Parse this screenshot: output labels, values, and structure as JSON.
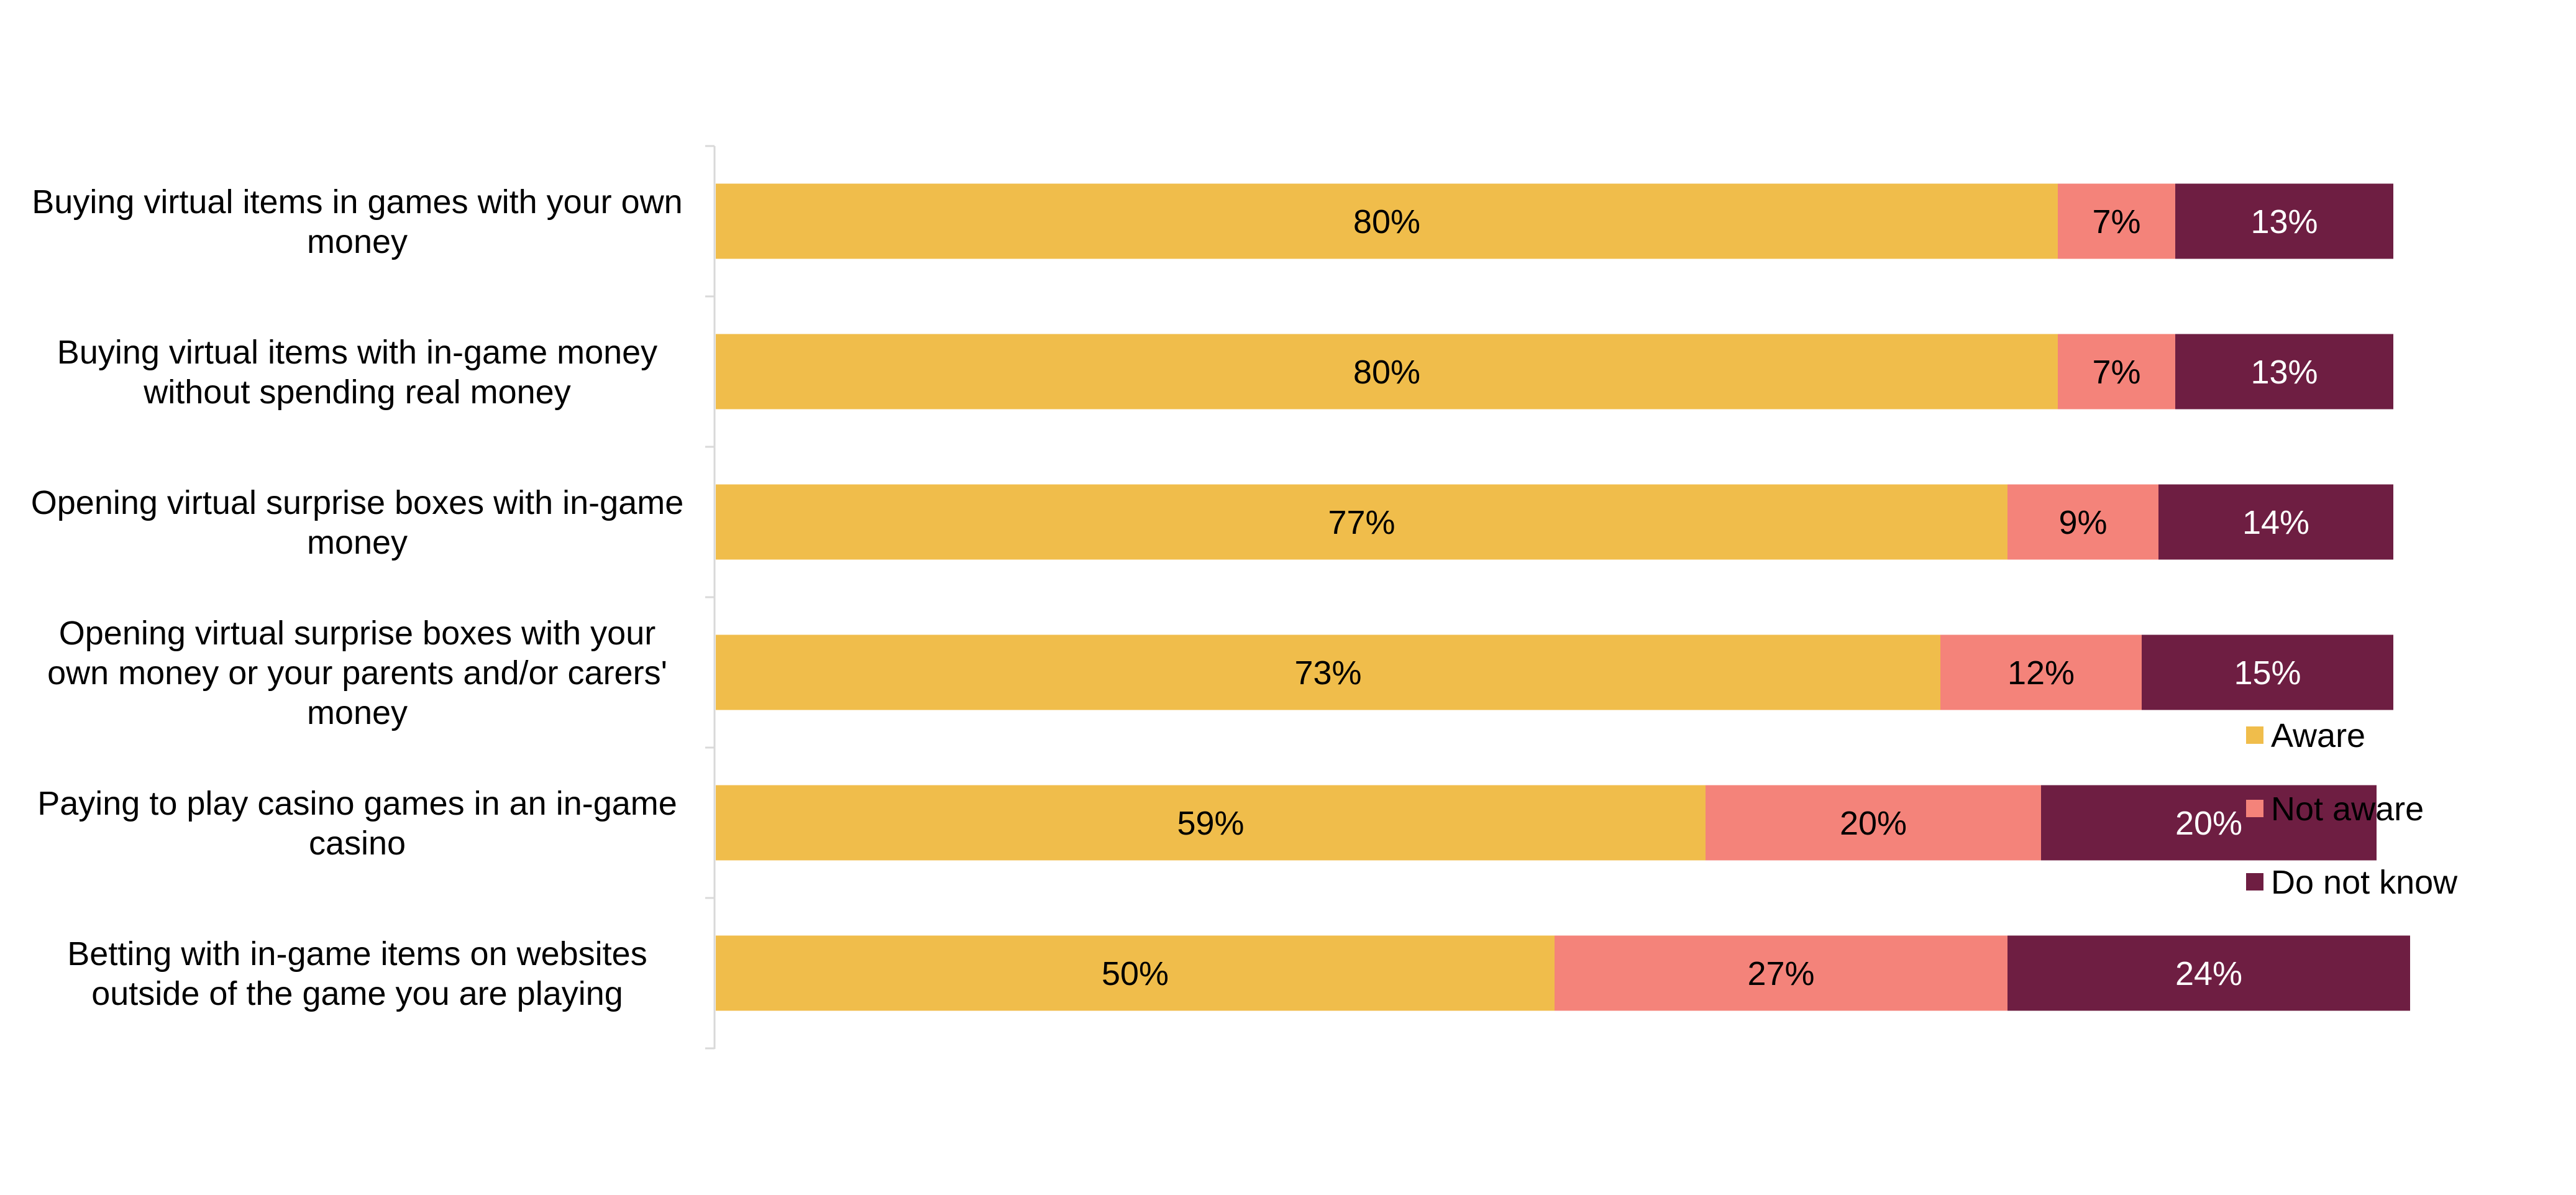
{
  "chart_data": {
    "type": "bar",
    "orientation": "horizontal",
    "stacked": true,
    "categories": [
      "Buying virtual items in games with your own money",
      "Buying virtual items with in-game money without spending real money",
      "Opening virtual surprise boxes with in-game money",
      "Opening virtual surprise boxes with your own money or your parents and/or carers' money",
      "Paying to play casino games in an in-game casino",
      "Betting with in-game items on websites outside of the game you are playing"
    ],
    "category_lines": [
      [
        "Buying virtual items in games with your own",
        "money"
      ],
      [
        "Buying virtual items with in-game money",
        "without spending real money"
      ],
      [
        "Opening virtual surprise boxes with in-game",
        "money"
      ],
      [
        "Opening virtual surprise boxes with your",
        "own money or your parents and/or carers'",
        "money"
      ],
      [
        "Paying to play casino games in an in-game",
        "casino"
      ],
      [
        "Betting with in-game items on websites",
        "outside of the game you are playing"
      ]
    ],
    "series": [
      {
        "name": "Aware",
        "color": "#F0BD4B",
        "label_color": "#000000",
        "values": [
          80,
          80,
          77,
          73,
          59,
          50
        ]
      },
      {
        "name": "Not aware",
        "color": "#F4837A",
        "label_color": "#000000",
        "values": [
          7,
          7,
          9,
          12,
          20,
          27
        ]
      },
      {
        "name": "Do not know",
        "color": "#6E1E42",
        "label_color": "#FFFFFF",
        "values": [
          13,
          13,
          14,
          15,
          20,
          24
        ]
      }
    ],
    "value_suffix": "%",
    "xlim": [
      0,
      100
    ],
    "grid": false,
    "legend_position": "right",
    "title": "",
    "xlabel": "",
    "ylabel": ""
  }
}
